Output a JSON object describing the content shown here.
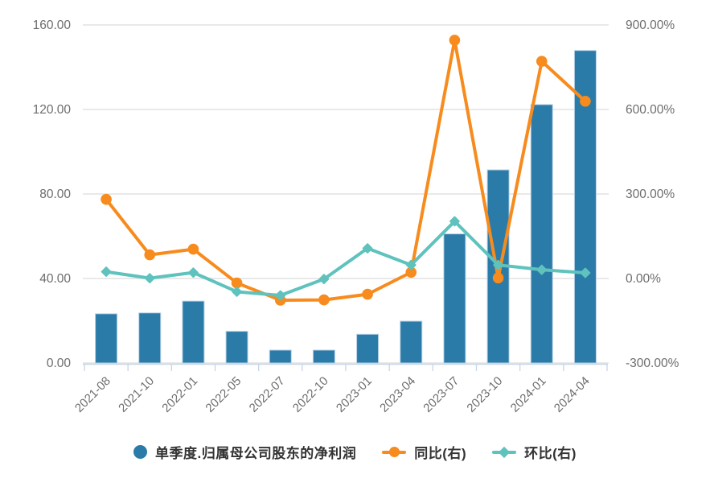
{
  "chart_data": {
    "type": "bar",
    "combo": "bar+line, dual y-axis",
    "title": "",
    "categories": [
      "2021-08",
      "2021-10",
      "2022-01",
      "2022-05",
      "2022-07",
      "2022-10",
      "2023-01",
      "2023-04",
      "2023-07",
      "2023-10",
      "2024-01",
      "2024-04"
    ],
    "series": [
      {
        "name": "单季度.归属母公司股东的净利润",
        "type": "bar",
        "axis": "left",
        "color": "#2a7ba8",
        "values": [
          23.3,
          23.7,
          29.3,
          15.0,
          6.1,
          6.1,
          13.6,
          19.8,
          61.1,
          91.4,
          122.3,
          147.9
        ]
      },
      {
        "name": "同比(右)",
        "type": "line",
        "marker": "circle",
        "axis": "right",
        "color": "#f78b1d",
        "values": [
          281,
          84,
          104,
          -16,
          -77,
          -76,
          -56,
          22,
          846,
          2,
          771,
          629
        ]
      },
      {
        "name": "环比(右)",
        "type": "line",
        "marker": "diamond",
        "axis": "right",
        "color": "#5fc2bd",
        "values": [
          24,
          1,
          21,
          -47,
          -60,
          -2,
          107,
          48,
          203,
          48,
          31,
          20
        ]
      }
    ],
    "left_axis": {
      "min": 0,
      "max": 160,
      "tick_labels": [
        "160.00",
        "120.00",
        "80.00",
        "40.00",
        "0.00"
      ]
    },
    "right_axis": {
      "min": -300,
      "max": 900,
      "tick_labels": [
        "900.00%",
        "600.00%",
        "300.00%",
        "0.00%",
        "-300.00%"
      ]
    },
    "grid": "horizontal",
    "legend_position": "bottom"
  },
  "styles": {
    "bar_color": "#2a7ba8",
    "bar_border_color": "#b6d0e4",
    "yoy_color": "#f78b1d",
    "mom_color": "#5fc2bd",
    "grid_color": "#e2e2e2",
    "axis_line_color": "#c8d5e6",
    "tick_label_color": "#6d6d6d",
    "legend_text_color": "#333333",
    "background": "#ffffff"
  }
}
